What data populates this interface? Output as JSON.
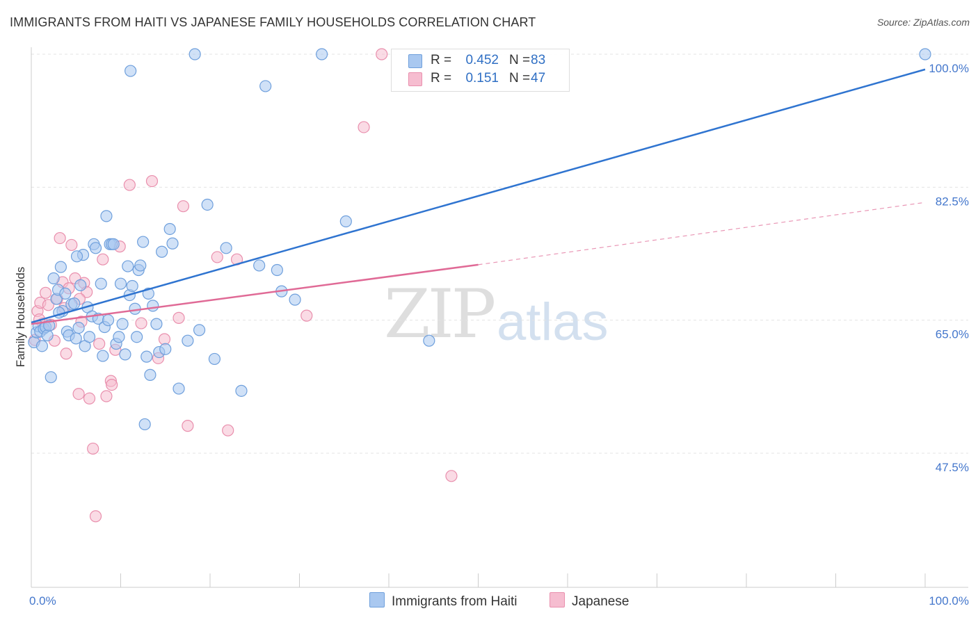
{
  "title": "IMMIGRANTS FROM HAITI VS JAPANESE FAMILY HOUSEHOLDS CORRELATION CHART",
  "source": "Source: ZipAtlas.com",
  "watermark": {
    "zip": "ZIP",
    "atlas": "atlas"
  },
  "colors": {
    "blue_fill": "#a9c8f0",
    "blue_stroke": "#6e9fdc",
    "blue_line": "#2f74d0",
    "pink_fill": "#f6bdd0",
    "pink_stroke": "#e98fad",
    "pink_line": "#e06a96",
    "axis_text": "#4477cc",
    "grid": "#e3e3e3"
  },
  "legend": {
    "rows": [
      {
        "r_label": "R =",
        "r_value": "0.452",
        "n_label": "N =",
        "n_value": "83",
        "color": "#a9c8f0"
      },
      {
        "r_label": "R =",
        "r_value": "0.151",
        "n_label": "N =",
        "n_value": "47",
        "color": "#f6bdd0"
      }
    ]
  },
  "bottom_legend": [
    {
      "label": "Immigrants from Haiti",
      "color": "#a9c8f0"
    },
    {
      "label": "Japanese",
      "color": "#f6bdd0"
    }
  ],
  "chart_data": {
    "type": "scatter",
    "title": "IMMIGRANTS FROM HAITI VS JAPANESE FAMILY HOUSEHOLDS CORRELATION CHART",
    "xlabel": "",
    "ylabel": "Family Households",
    "xlim": [
      0,
      100
    ],
    "ylim": [
      32,
      101
    ],
    "x_tick_labels": [
      {
        "value": 0,
        "label": "0.0%"
      },
      {
        "value": 100,
        "label": "100.0%"
      }
    ],
    "y_tick_labels": [
      {
        "value": 100,
        "label": "100.0%"
      },
      {
        "value": 82.5,
        "label": "82.5%"
      },
      {
        "value": 65,
        "label": "65.0%"
      },
      {
        "value": 47.5,
        "label": "47.5%"
      }
    ],
    "series": [
      {
        "name": "Immigrants from Haiti",
        "R": 0.452,
        "N": 83,
        "trend": {
          "x": [
            0,
            100
          ],
          "y": [
            64.7,
            98.0
          ]
        },
        "points": [
          [
            0.3,
            62.1
          ],
          [
            0.6,
            63.4
          ],
          [
            0.8,
            64.2
          ],
          [
            1.0,
            63.5
          ],
          [
            1.2,
            61.6
          ],
          [
            1.4,
            63.9
          ],
          [
            1.6,
            64.1
          ],
          [
            1.8,
            63.0
          ],
          [
            2.2,
            57.5
          ],
          [
            2.5,
            70.5
          ],
          [
            2.8,
            67.8
          ],
          [
            3.0,
            69.0
          ],
          [
            3.3,
            72.0
          ],
          [
            3.5,
            66.2
          ],
          [
            3.8,
            68.5
          ],
          [
            4.0,
            63.5
          ],
          [
            4.2,
            63.0
          ],
          [
            4.5,
            67.1
          ],
          [
            4.8,
            67.2
          ],
          [
            5.0,
            62.6
          ],
          [
            5.3,
            64.0
          ],
          [
            5.5,
            69.6
          ],
          [
            5.8,
            73.6
          ],
          [
            6.0,
            61.6
          ],
          [
            6.3,
            66.7
          ],
          [
            6.5,
            62.8
          ],
          [
            6.8,
            65.5
          ],
          [
            7.0,
            75.0
          ],
          [
            7.2,
            74.5
          ],
          [
            7.5,
            65.2
          ],
          [
            7.8,
            69.8
          ],
          [
            8.0,
            60.3
          ],
          [
            8.2,
            64.1
          ],
          [
            8.4,
            78.7
          ],
          [
            8.6,
            65.0
          ],
          [
            8.8,
            75.0
          ],
          [
            9.0,
            75.0
          ],
          [
            9.2,
            75.0
          ],
          [
            9.5,
            61.9
          ],
          [
            9.8,
            62.8
          ],
          [
            10.0,
            69.8
          ],
          [
            10.2,
            64.5
          ],
          [
            10.5,
            60.5
          ],
          [
            10.8,
            72.1
          ],
          [
            11.0,
            68.3
          ],
          [
            11.3,
            69.5
          ],
          [
            11.6,
            66.5
          ],
          [
            11.8,
            62.8
          ],
          [
            12.0,
            71.6
          ],
          [
            12.2,
            72.2
          ],
          [
            12.5,
            75.3
          ],
          [
            12.7,
            51.3
          ],
          [
            12.9,
            60.2
          ],
          [
            13.1,
            68.5
          ],
          [
            13.3,
            57.8
          ],
          [
            13.6,
            66.9
          ],
          [
            14.0,
            64.5
          ],
          [
            14.3,
            60.8
          ],
          [
            14.6,
            74.0
          ],
          [
            15.0,
            61.2
          ],
          [
            15.5,
            77.0
          ],
          [
            15.8,
            75.1
          ],
          [
            16.5,
            56.0
          ],
          [
            17.5,
            62.3
          ],
          [
            18.8,
            63.7
          ],
          [
            19.7,
            80.2
          ],
          [
            20.5,
            59.9
          ],
          [
            21.8,
            74.5
          ],
          [
            23.5,
            55.7
          ],
          [
            25.5,
            72.2
          ],
          [
            26.2,
            95.8
          ],
          [
            27.5,
            71.6
          ],
          [
            28.0,
            68.8
          ],
          [
            29.5,
            67.7
          ],
          [
            18.3,
            100.0
          ],
          [
            11.1,
            97.8
          ],
          [
            32.5,
            100.0
          ],
          [
            35.2,
            78.0
          ],
          [
            44.5,
            62.3
          ],
          [
            100.0,
            100.0
          ],
          [
            5.1,
            73.4
          ],
          [
            2.0,
            64.3
          ],
          [
            3.1,
            66.0
          ]
        ]
      },
      {
        "name": "Japanese",
        "R": 0.151,
        "N": 47,
        "trend": {
          "x": [
            0,
            50
          ],
          "y": [
            64.5,
            72.3
          ]
        },
        "trend_dashed": {
          "x": [
            50,
            100
          ],
          "y": [
            72.3,
            80.5
          ]
        },
        "points": [
          [
            0.4,
            62.4
          ],
          [
            0.7,
            66.2
          ],
          [
            1.0,
            67.3
          ],
          [
            1.3,
            64.6
          ],
          [
            1.6,
            68.6
          ],
          [
            1.9,
            67.0
          ],
          [
            2.2,
            64.4
          ],
          [
            2.6,
            62.3
          ],
          [
            2.9,
            67.8
          ],
          [
            3.2,
            75.8
          ],
          [
            3.5,
            70.0
          ],
          [
            3.9,
            60.6
          ],
          [
            4.2,
            69.2
          ],
          [
            4.5,
            74.9
          ],
          [
            4.9,
            70.5
          ],
          [
            5.3,
            55.3
          ],
          [
            5.6,
            64.8
          ],
          [
            5.9,
            69.9
          ],
          [
            6.2,
            68.7
          ],
          [
            6.5,
            54.7
          ],
          [
            6.9,
            48.1
          ],
          [
            7.2,
            39.2
          ],
          [
            7.6,
            61.9
          ],
          [
            8.0,
            73.0
          ],
          [
            8.4,
            55.0
          ],
          [
            8.9,
            57.0
          ],
          [
            9.0,
            56.5
          ],
          [
            9.4,
            61.1
          ],
          [
            9.9,
            74.7
          ],
          [
            11.0,
            82.8
          ],
          [
            12.3,
            64.6
          ],
          [
            13.5,
            83.3
          ],
          [
            14.2,
            60.0
          ],
          [
            14.9,
            62.5
          ],
          [
            16.5,
            65.3
          ],
          [
            17.0,
            80.0
          ],
          [
            17.5,
            51.1
          ],
          [
            20.8,
            73.3
          ],
          [
            22.0,
            50.5
          ],
          [
            23.0,
            73.0
          ],
          [
            30.8,
            65.6
          ],
          [
            37.2,
            90.4
          ],
          [
            39.2,
            100.0
          ],
          [
            47.0,
            44.5
          ],
          [
            0.9,
            65.1
          ],
          [
            5.4,
            67.8
          ],
          [
            3.7,
            66.6
          ]
        ]
      }
    ]
  }
}
